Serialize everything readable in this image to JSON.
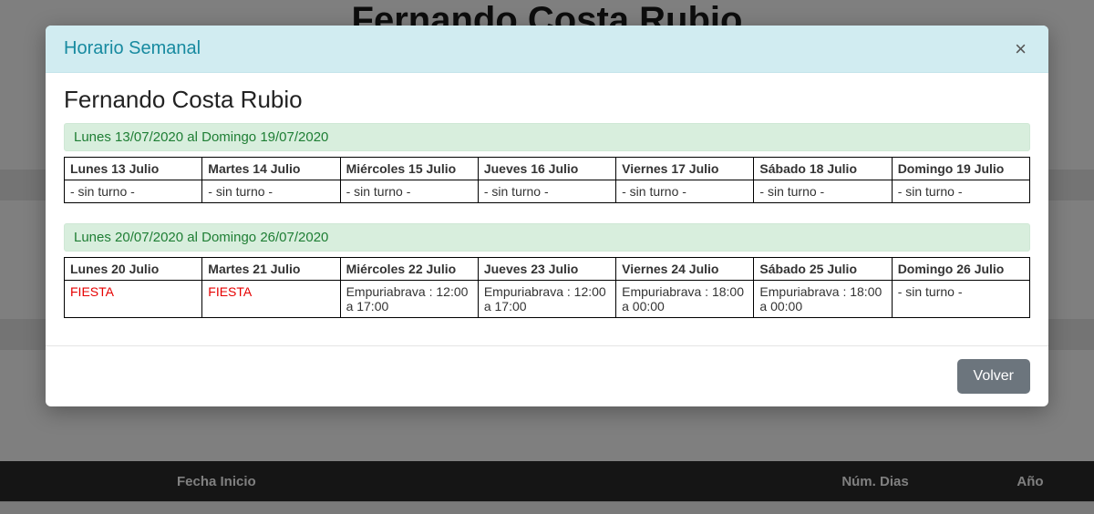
{
  "background": {
    "title": "Fernando Costa Rubio",
    "table_headers": {
      "fecha_inicio": "Fecha Inicio",
      "num_dias": "Núm. Dias",
      "ano": "Año"
    }
  },
  "modal": {
    "title": "Horario Semanal",
    "close_symbol": "×",
    "person_name": "Fernando Costa Rubio",
    "volver_label": "Volver",
    "colors": {
      "header_bg": "#d1ecf1",
      "header_text": "#178aa0",
      "week_bg": "#d8eedd",
      "week_text": "#1e7e34",
      "fiesta_text": "#e60000",
      "btn_bg": "#6c757d"
    },
    "weeks": [
      {
        "label": "Lunes 13/07/2020 al Domingo 19/07/2020",
        "headers": [
          "Lunes 13 Julio",
          "Martes 14 Julio",
          "Miércoles 15 Julio",
          "Jueves 16 Julio",
          "Viernes 17 Julio",
          "Sábado 18 Julio",
          "Domingo 19 Julio"
        ],
        "cells": [
          {
            "text": "- sin turno -",
            "fiesta": false
          },
          {
            "text": "- sin turno -",
            "fiesta": false
          },
          {
            "text": "- sin turno -",
            "fiesta": false
          },
          {
            "text": "- sin turno -",
            "fiesta": false
          },
          {
            "text": "- sin turno -",
            "fiesta": false
          },
          {
            "text": "- sin turno -",
            "fiesta": false
          },
          {
            "text": "- sin turno -",
            "fiesta": false
          }
        ]
      },
      {
        "label": "Lunes 20/07/2020 al Domingo 26/07/2020",
        "headers": [
          "Lunes 20 Julio",
          "Martes 21 Julio",
          "Miércoles 22 Julio",
          "Jueves 23 Julio",
          "Viernes 24 Julio",
          "Sábado 25 Julio",
          "Domingo 26 Julio"
        ],
        "cells": [
          {
            "text": "FIESTA",
            "fiesta": true
          },
          {
            "text": "FIESTA",
            "fiesta": true
          },
          {
            "text": "Empuriabrava : 12:00 a 17:00",
            "fiesta": false
          },
          {
            "text": "Empuriabrava : 12:00 a 17:00",
            "fiesta": false
          },
          {
            "text": "Empuriabrava : 18:00 a 00:00",
            "fiesta": false
          },
          {
            "text": "Empuriabrava : 18:00 a 00:00",
            "fiesta": false
          },
          {
            "text": "- sin turno -",
            "fiesta": false
          }
        ]
      }
    ]
  }
}
